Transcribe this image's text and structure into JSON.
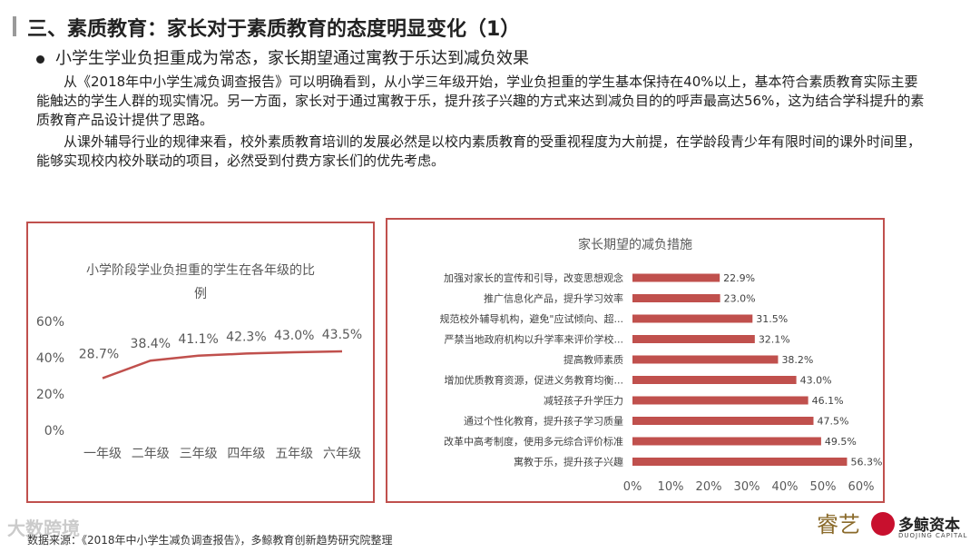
{
  "header": {
    "title": "三、素质教育：家长对于素质教育的态度明显变化（1）",
    "bullet": "小学生学业负担重成为常态，家长期望通过寓教于乐达到减负效果"
  },
  "paragraphs": [
    "从《2018年中小学生减负调查报告》可以明确看到，从小学三年级开始，学业负担重的学生基本保持在40%以上，基本符合素质教育实际主要能触达的学生人群的现实情况。另一方面，家长对于通过寓教于乐，提升孩子兴趣的方式来达到减负目的的呼声最高达56%，这为结合学科提升的素质教育产品设计提供了思路。",
    "从课外辅导行业的规律来看，校外素质教育培训的发展必然是以校内素质教育的受重视程度为大前提，在学龄段青少年有限时间的课外时间里，能够实现校内校外联动的项目，必然受到付费方家长们的优先考虑。"
  ],
  "colors": {
    "accent": "#c0504d",
    "text": "#222222",
    "axis": "#595959"
  },
  "chart_data": [
    {
      "type": "line",
      "title_lines": [
        "小学阶段学业负担重的学生在各年级的比",
        "例"
      ],
      "categories": [
        "一年级",
        "二年级",
        "三年级",
        "四年级",
        "五年级",
        "六年级"
      ],
      "values": [
        28.7,
        38.4,
        41.1,
        42.3,
        43.0,
        43.5
      ],
      "data_labels": [
        "28.7%",
        "38.4%",
        "41.1%",
        "42.3%",
        "43.0%",
        "43.5%"
      ],
      "ylim": [
        0,
        60
      ],
      "yticks": [
        "0%",
        "20%",
        "40%",
        "60%"
      ],
      "xlabel": "",
      "ylabel": "",
      "grid": false
    },
    {
      "type": "bar",
      "orientation": "horizontal",
      "title": "家长期望的减负措施",
      "categories": [
        "加强对家长的宣传和引导，改变思想观念",
        "推广信息化产品，提升学习效率",
        "规范校外辅导机构，避免\"应试倾向、超...",
        "严禁当地政府机构以升学率来评价学校...",
        "提高教师素质",
        "增加优质教育资源，促进义务教育均衡...",
        "减轻孩子升学压力",
        "通过个性化教育，提升孩子学习质量",
        "改革中高考制度，使用多元综合评价标准",
        "寓教于乐，提升孩子兴趣"
      ],
      "values": [
        22.9,
        23.0,
        31.5,
        32.1,
        38.2,
        43.0,
        46.1,
        47.5,
        49.5,
        56.3
      ],
      "data_labels": [
        "22.9%",
        "23.0%",
        "31.5%",
        "32.1%",
        "38.2%",
        "43.0%",
        "46.1%",
        "47.5%",
        "49.5%",
        "56.3%"
      ],
      "xlim": [
        0,
        60
      ],
      "xticks": [
        "0%",
        "10%",
        "20%",
        "30%",
        "40%",
        "50%",
        "60%"
      ],
      "grid": false
    }
  ],
  "footer": {
    "source": "数据来源：《2018年中小学生减负调查报告》，多鲸教育创新趋势研究院整理",
    "watermark": "大数跨境"
  },
  "logos": {
    "logo1_text": "睿艺",
    "logo2_text": "多鲸资本",
    "logo2_sub": "DUOJING CAPITAL"
  }
}
